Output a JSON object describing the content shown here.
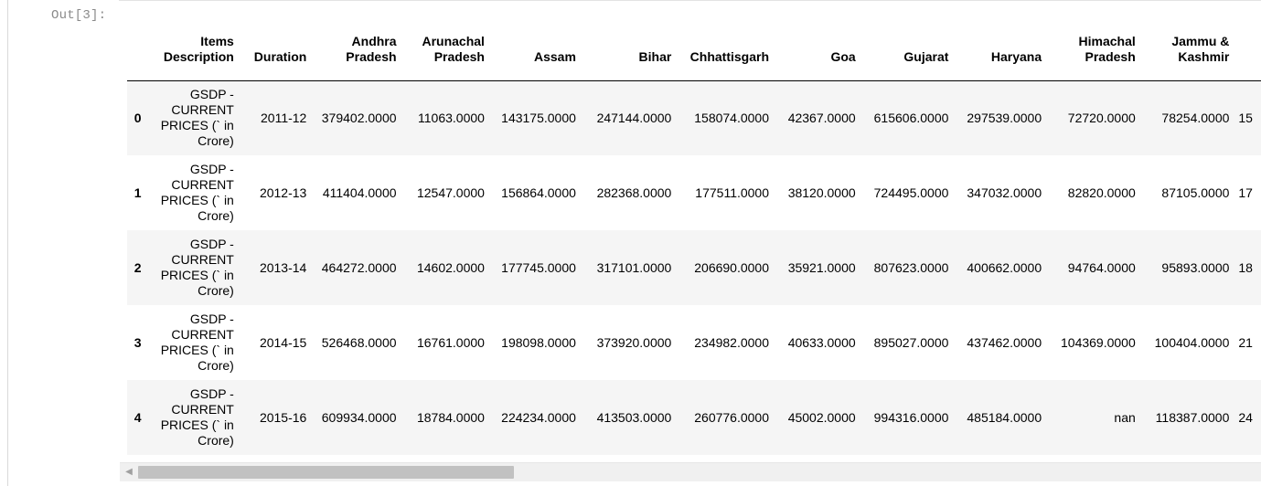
{
  "cell": {
    "prompt": "Out[3]:"
  },
  "table": {
    "columns": [
      "",
      "Items Description",
      "Duration",
      "Andhra Pradesh",
      "Arunachal Pradesh",
      "Assam",
      "Bihar",
      "Chhattisgarh",
      "Goa",
      "Gujarat",
      "Haryana",
      "Himachal Pradesh",
      "Jammu & Kashmir",
      ""
    ],
    "rows": [
      {
        "index": "0",
        "cells": [
          "GSDP - CURRENT PRICES (` in Crore)",
          "2011-12",
          "379402.0000",
          "11063.0000",
          "143175.0000",
          "247144.0000",
          "158074.0000",
          "42367.0000",
          "615606.0000",
          "297539.0000",
          "72720.0000",
          "78254.0000",
          "15"
        ]
      },
      {
        "index": "1",
        "cells": [
          "GSDP - CURRENT PRICES (` in Crore)",
          "2012-13",
          "411404.0000",
          "12547.0000",
          "156864.0000",
          "282368.0000",
          "177511.0000",
          "38120.0000",
          "724495.0000",
          "347032.0000",
          "82820.0000",
          "87105.0000",
          "17"
        ]
      },
      {
        "index": "2",
        "cells": [
          "GSDP - CURRENT PRICES (` in Crore)",
          "2013-14",
          "464272.0000",
          "14602.0000",
          "177745.0000",
          "317101.0000",
          "206690.0000",
          "35921.0000",
          "807623.0000",
          "400662.0000",
          "94764.0000",
          "95893.0000",
          "18"
        ]
      },
      {
        "index": "3",
        "cells": [
          "GSDP - CURRENT PRICES (` in Crore)",
          "2014-15",
          "526468.0000",
          "16761.0000",
          "198098.0000",
          "373920.0000",
          "234982.0000",
          "40633.0000",
          "895027.0000",
          "437462.0000",
          "104369.0000",
          "100404.0000",
          "21"
        ]
      },
      {
        "index": "4",
        "cells": [
          "GSDP - CURRENT PRICES (` in Crore)",
          "2015-16",
          "609934.0000",
          "18784.0000",
          "224234.0000",
          "413503.0000",
          "260776.0000",
          "45002.0000",
          "994316.0000",
          "485184.0000",
          "nan",
          "118387.0000",
          "24"
        ]
      }
    ]
  },
  "scrollbar": {
    "left_arrow": "◀"
  }
}
